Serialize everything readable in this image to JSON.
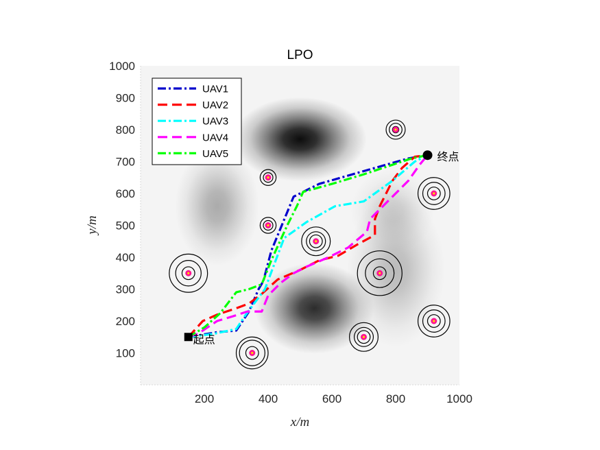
{
  "chart_data": {
    "type": "line",
    "title": "LPO",
    "xlabel": "x/m",
    "ylabel": "y/m",
    "xlim": [
      0,
      1000
    ],
    "ylim": [
      0,
      1000
    ],
    "xticks": [
      200,
      400,
      600,
      800,
      1000
    ],
    "yticks": [
      100,
      200,
      300,
      400,
      500,
      600,
      700,
      800,
      900,
      1000
    ],
    "legend_position": "top-left",
    "background": "grayscale terrain with dark hills",
    "hills": [
      {
        "x": 500,
        "y": 770,
        "sx": 95,
        "sy": 60,
        "a": 0.95
      },
      {
        "x": 545,
        "y": 240,
        "sx": 85,
        "sy": 65,
        "a": 0.82
      },
      {
        "x": 240,
        "y": 560,
        "sx": 60,
        "sy": 85,
        "a": 0.3
      },
      {
        "x": 800,
        "y": 360,
        "sx": 70,
        "sy": 110,
        "a": 0.24
      },
      {
        "x": 790,
        "y": 545,
        "sx": 60,
        "sy": 60,
        "a": 0.15
      }
    ],
    "threats": [
      {
        "x": 150,
        "y": 350,
        "radii": [
          20,
          40,
          60
        ]
      },
      {
        "x": 350,
        "y": 100,
        "radii": [
          20,
          40,
          50
        ]
      },
      {
        "x": 400,
        "y": 650,
        "radii": [
          15,
          25
        ]
      },
      {
        "x": 400,
        "y": 500,
        "radii": [
          15,
          25
        ]
      },
      {
        "x": 550,
        "y": 450,
        "radii": [
          20,
          30,
          45
        ]
      },
      {
        "x": 700,
        "y": 150,
        "radii": [
          20,
          30,
          45
        ]
      },
      {
        "x": 750,
        "y": 350,
        "radii": [
          20,
          45,
          70
        ]
      },
      {
        "x": 800,
        "y": 800,
        "radii": [
          10,
          20,
          30
        ]
      },
      {
        "x": 920,
        "y": 600,
        "radii": [
          20,
          35,
          50
        ]
      },
      {
        "x": 920,
        "y": 200,
        "radii": [
          20,
          35,
          50
        ]
      }
    ],
    "start": {
      "x": 150,
      "y": 150,
      "label": "起点"
    },
    "goal": {
      "x": 900,
      "y": 720,
      "label": "终点"
    },
    "series": [
      {
        "name": "UAV1",
        "color": "#0000cc",
        "dash": "12,4,3,4",
        "points": [
          [
            150,
            150
          ],
          [
            240,
            165
          ],
          [
            300,
            170
          ],
          [
            340,
            230
          ],
          [
            370,
            300
          ],
          [
            385,
            325
          ],
          [
            410,
            420
          ],
          [
            480,
            590
          ],
          [
            560,
            630
          ],
          [
            700,
            670
          ],
          [
            840,
            710
          ],
          [
            900,
            720
          ]
        ]
      },
      {
        "name": "UAV2",
        "color": "#ff0000",
        "dash": "14,7",
        "points": [
          [
            150,
            150
          ],
          [
            195,
            200
          ],
          [
            240,
            220
          ],
          [
            300,
            240
          ],
          [
            340,
            255
          ],
          [
            380,
            285
          ],
          [
            430,
            330
          ],
          [
            500,
            360
          ],
          [
            560,
            390
          ],
          [
            620,
            405
          ],
          [
            680,
            440
          ],
          [
            735,
            470
          ],
          [
            735,
            520
          ],
          [
            750,
            560
          ],
          [
            790,
            640
          ],
          [
            820,
            680
          ],
          [
            860,
            715
          ],
          [
            900,
            720
          ]
        ]
      },
      {
        "name": "UAV3",
        "color": "#00ffff",
        "dash": "12,4,3,4",
        "points": [
          [
            150,
            150
          ],
          [
            230,
            160
          ],
          [
            300,
            175
          ],
          [
            330,
            220
          ],
          [
            360,
            260
          ],
          [
            390,
            300
          ],
          [
            420,
            380
          ],
          [
            450,
            460
          ],
          [
            520,
            510
          ],
          [
            610,
            560
          ],
          [
            700,
            575
          ],
          [
            790,
            640
          ],
          [
            860,
            700
          ],
          [
            900,
            720
          ]
        ]
      },
      {
        "name": "UAV4",
        "color": "#ff00ff",
        "dash": "14,7",
        "points": [
          [
            150,
            150
          ],
          [
            180,
            160
          ],
          [
            240,
            200
          ],
          [
            290,
            215
          ],
          [
            335,
            230
          ],
          [
            380,
            230
          ],
          [
            400,
            280
          ],
          [
            440,
            320
          ],
          [
            480,
            350
          ],
          [
            520,
            370
          ],
          [
            590,
            400
          ],
          [
            650,
            430
          ],
          [
            710,
            480
          ],
          [
            720,
            520
          ],
          [
            760,
            560
          ],
          [
            800,
            600
          ],
          [
            840,
            640
          ],
          [
            875,
            690
          ],
          [
            900,
            720
          ]
        ]
      },
      {
        "name": "UAV5",
        "color": "#00ff00",
        "dash": "12,4,3,4",
        "points": [
          [
            150,
            150
          ],
          [
            200,
            180
          ],
          [
            250,
            225
          ],
          [
            300,
            290
          ],
          [
            340,
            300
          ],
          [
            380,
            315
          ],
          [
            410,
            390
          ],
          [
            460,
            500
          ],
          [
            490,
            560
          ],
          [
            510,
            605
          ],
          [
            600,
            630
          ],
          [
            700,
            660
          ],
          [
            790,
            690
          ],
          [
            850,
            710
          ],
          [
            900,
            720
          ]
        ]
      }
    ]
  }
}
